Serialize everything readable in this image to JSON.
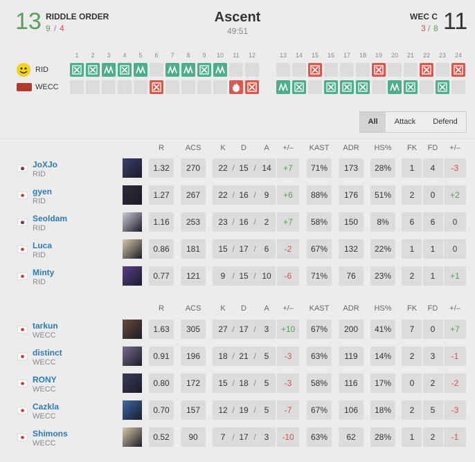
{
  "header": {
    "separator": "/",
    "map": "Ascent",
    "duration": "49:51",
    "team1": {
      "name": "RIDDLE ORDER",
      "score": 13,
      "split": [
        9,
        4
      ]
    },
    "team2": {
      "name": "WEC C",
      "score": 11,
      "split": [
        3,
        8
      ]
    }
  },
  "rounds": {
    "numbers": [
      1,
      2,
      3,
      4,
      5,
      6,
      7,
      8,
      9,
      10,
      11,
      12,
      13,
      14,
      15,
      16,
      17,
      18,
      19,
      20,
      21,
      22,
      23,
      24
    ],
    "teams": [
      "RID",
      "WECC"
    ]
  },
  "tabs": [
    "All",
    "Attack",
    "Defend"
  ],
  "tables": [
    {
      "headers": [
        "R",
        "ACS",
        "K",
        "D",
        "A",
        "+/–",
        "KAST",
        "ADR",
        "HS%",
        "FK",
        "FD",
        "+/–"
      ],
      "players": [
        {
          "name": "JoXJo",
          "team": "RID",
          "stats": [
            "1.32",
            "270",
            "22",
            "15",
            "14",
            "+7",
            "71%",
            "173",
            "28%",
            "1",
            "4",
            "-3"
          ]
        },
        {
          "name": "gyen",
          "team": "RID",
          "stats": [
            "1.27",
            "267",
            "22",
            "16",
            "9",
            "+6",
            "88%",
            "176",
            "51%",
            "2",
            "0",
            "+2"
          ]
        },
        {
          "name": "Seoldam",
          "team": "RID",
          "stats": [
            "1.16",
            "253",
            "23",
            "16",
            "2",
            "+7",
            "58%",
            "150",
            "8%",
            "6",
            "6",
            "0"
          ]
        },
        {
          "name": "Luca",
          "team": "RID",
          "stats": [
            "0.86",
            "181",
            "15",
            "17",
            "6",
            "-2",
            "67%",
            "132",
            "22%",
            "1",
            "1",
            "0"
          ]
        },
        {
          "name": "Minty",
          "team": "RID",
          "stats": [
            "0.77",
            "121",
            "9",
            "15",
            "10",
            "-6",
            "71%",
            "76",
            "23%",
            "2",
            "1",
            "+1"
          ]
        }
      ]
    },
    {
      "headers": [
        "R",
        "ACS",
        "K",
        "D",
        "A",
        "+/–",
        "KAST",
        "ADR",
        "HS%",
        "FK",
        "FD",
        "+/–"
      ],
      "players": [
        {
          "name": "tarkun",
          "team": "WECC",
          "stats": [
            "1.63",
            "305",
            "27",
            "17",
            "3",
            "+10",
            "67%",
            "200",
            "41%",
            "7",
            "0",
            "+7"
          ]
        },
        {
          "name": "distinct",
          "team": "WECC",
          "stats": [
            "0.91",
            "196",
            "18",
            "21",
            "5",
            "-3",
            "63%",
            "119",
            "14%",
            "2",
            "3",
            "-1"
          ]
        },
        {
          "name": "RONY",
          "team": "WECC",
          "stats": [
            "0.80",
            "172",
            "15",
            "18",
            "5",
            "-3",
            "58%",
            "116",
            "17%",
            "0",
            "2",
            "-2"
          ]
        },
        {
          "name": "Cazkla",
          "team": "WECC",
          "stats": [
            "0.70",
            "157",
            "12",
            "19",
            "5",
            "-7",
            "67%",
            "106",
            "18%",
            "2",
            "5",
            "-3"
          ]
        },
        {
          "name": "Shimons",
          "team": "WECC",
          "stats": [
            "0.52",
            "90",
            "7",
            "17",
            "3",
            "-10",
            "63%",
            "62",
            "28%",
            "1",
            "2",
            "-1"
          ]
        }
      ]
    }
  ]
}
